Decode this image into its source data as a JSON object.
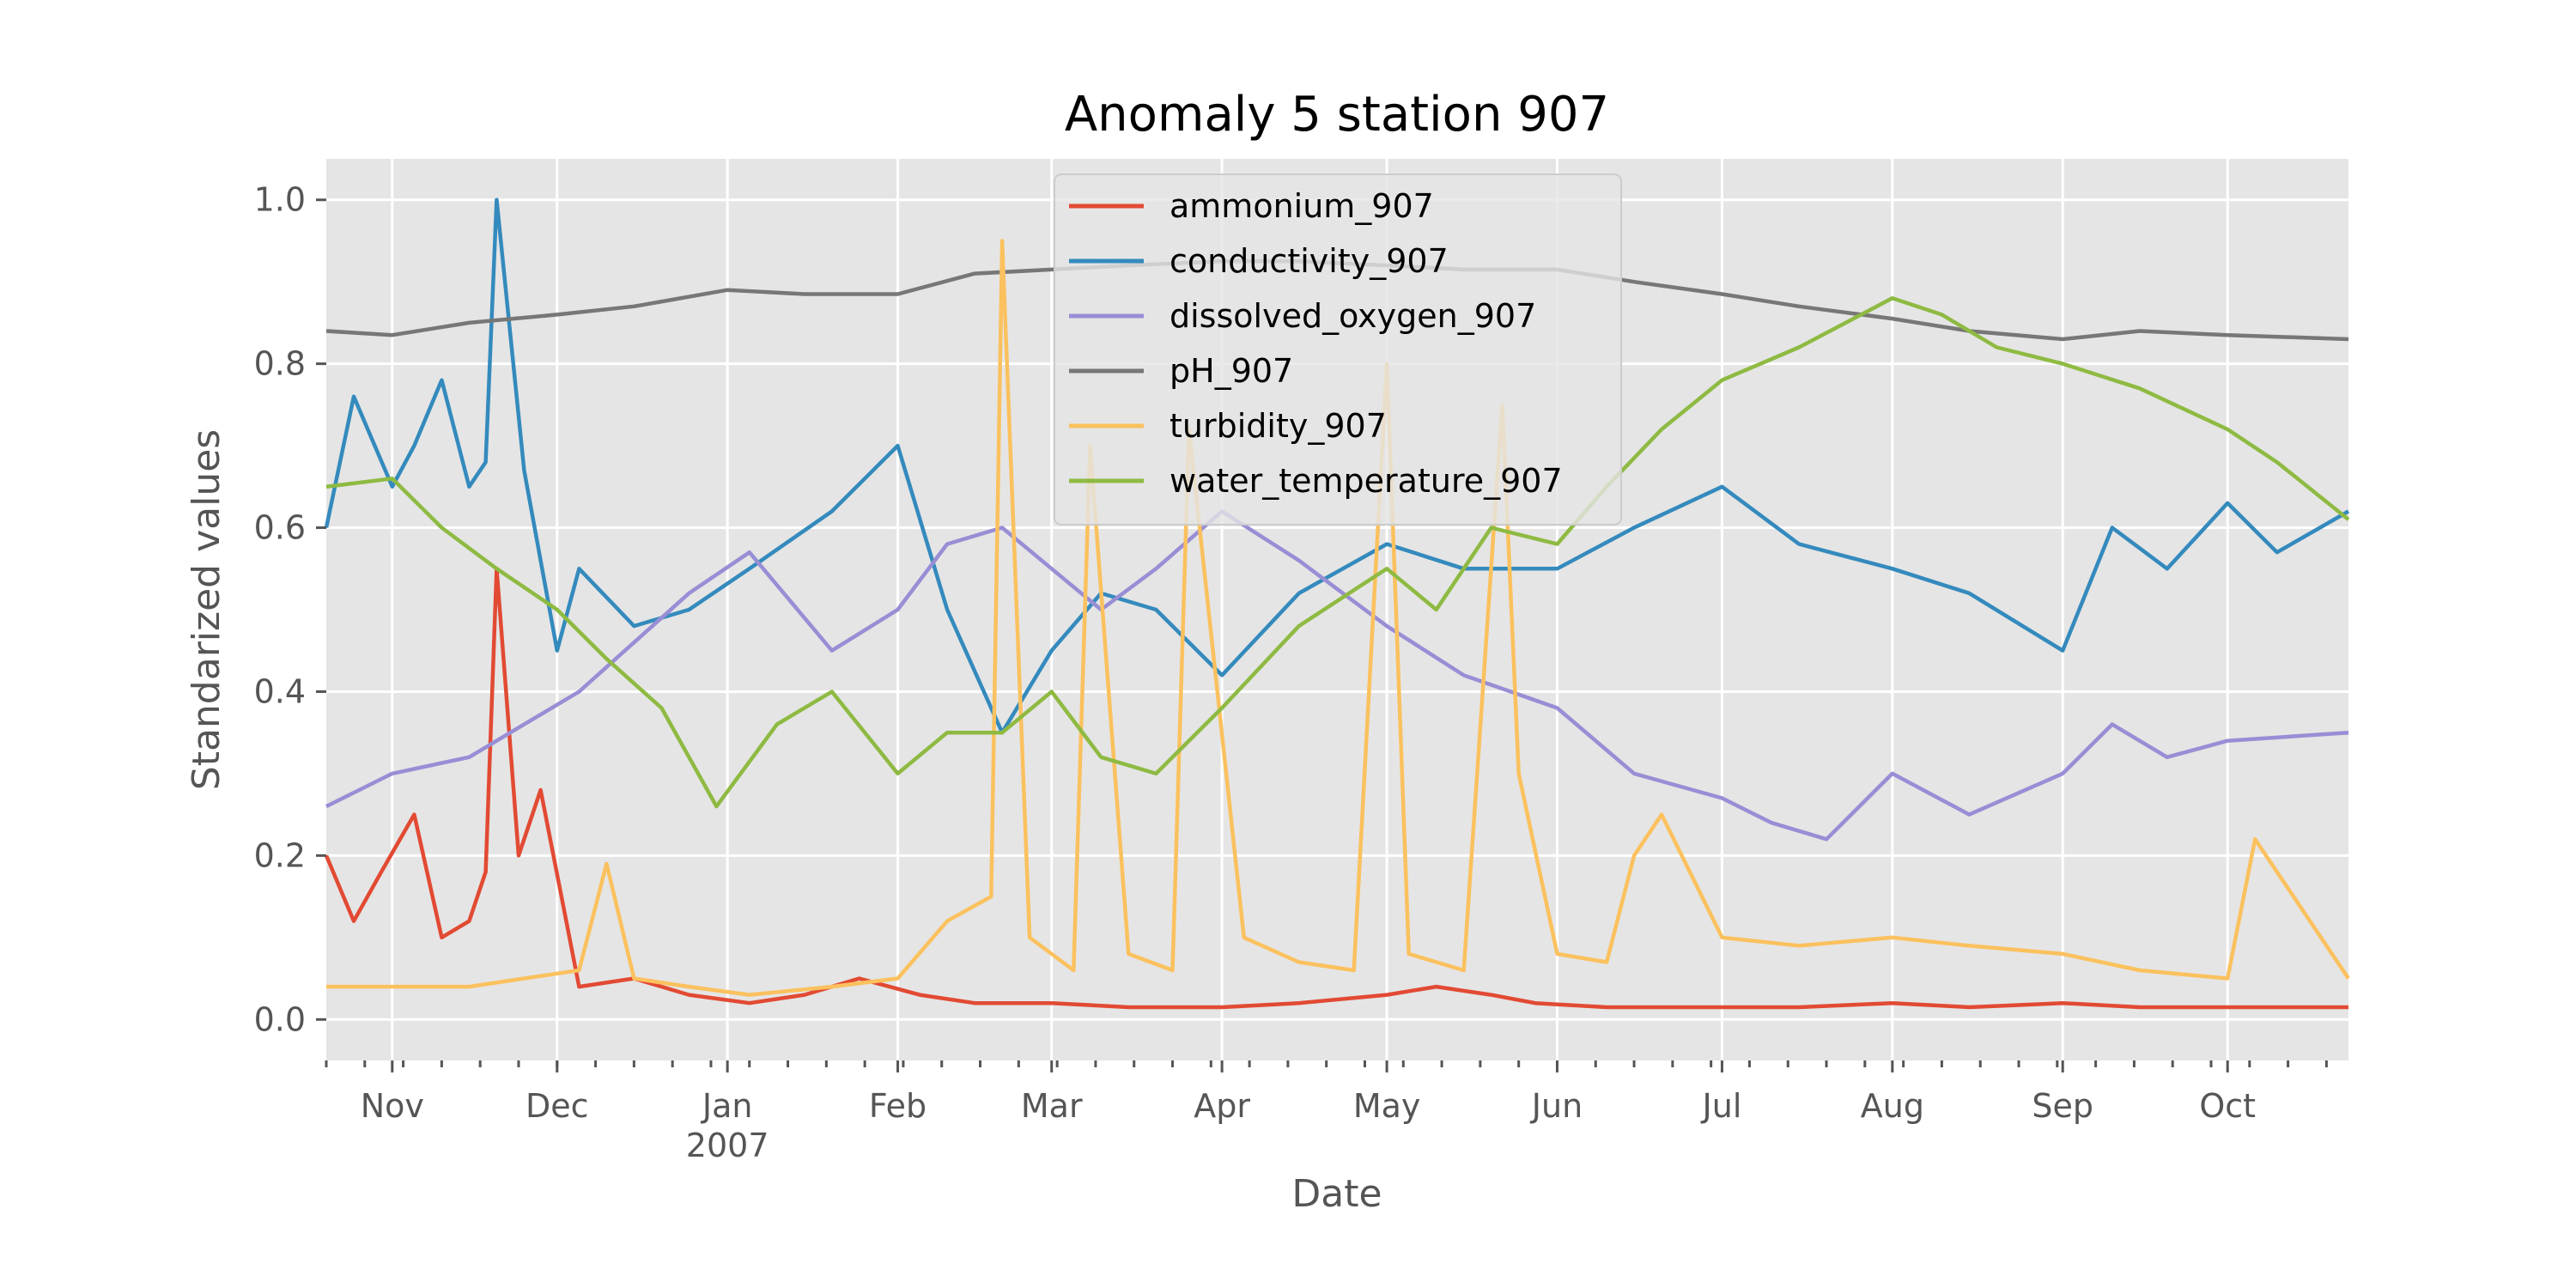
{
  "chart_data": {
    "type": "line",
    "title": "Anomaly 5 station 907",
    "xlabel": "Date",
    "ylabel": "Standarized values",
    "x_range": [
      "2006-10-20",
      "2007-10-23"
    ],
    "ylim": [
      -0.05,
      1.05
    ],
    "y_ticks": [
      0.0,
      0.2,
      0.4,
      0.6,
      0.8,
      1.0
    ],
    "y_tick_labels": [
      "0.0",
      "0.2",
      "0.4",
      "0.6",
      "0.8",
      "1.0"
    ],
    "x_major_ticks": [
      {
        "date": "2006-11-01",
        "label": "Nov"
      },
      {
        "date": "2006-12-01",
        "label": "Dec"
      },
      {
        "date": "2007-01-01",
        "label": "Jan",
        "sublabel": "2007"
      },
      {
        "date": "2007-02-01",
        "label": "Feb"
      },
      {
        "date": "2007-03-01",
        "label": "Mar"
      },
      {
        "date": "2007-04-01",
        "label": "Apr"
      },
      {
        "date": "2007-05-01",
        "label": "May"
      },
      {
        "date": "2007-06-01",
        "label": "Jun"
      },
      {
        "date": "2007-07-01",
        "label": "Jul"
      },
      {
        "date": "2007-08-01",
        "label": "Aug"
      },
      {
        "date": "2007-09-01",
        "label": "Sep"
      },
      {
        "date": "2007-10-01",
        "label": "Oct"
      }
    ],
    "grid": true,
    "legend_position": "top-center",
    "background": "#e5e5e5",
    "series": [
      {
        "name": "ammonium_907",
        "color": "#e24a33",
        "x": [
          "2006-10-20",
          "2006-10-25",
          "2006-10-30",
          "2006-11-05",
          "2006-11-10",
          "2006-11-15",
          "2006-11-18",
          "2006-11-20",
          "2006-11-24",
          "2006-11-28",
          "2006-12-05",
          "2006-12-15",
          "2006-12-25",
          "2007-01-05",
          "2007-01-15",
          "2007-01-25",
          "2007-02-05",
          "2007-02-15",
          "2007-03-01",
          "2007-03-15",
          "2007-04-01",
          "2007-04-15",
          "2007-05-01",
          "2007-05-10",
          "2007-05-20",
          "2007-05-28",
          "2007-06-10",
          "2007-06-20",
          "2007-07-01",
          "2007-07-15",
          "2007-08-01",
          "2007-08-15",
          "2007-09-01",
          "2007-09-15",
          "2007-10-01",
          "2007-10-23"
        ],
        "y": [
          0.2,
          0.12,
          0.18,
          0.25,
          0.1,
          0.12,
          0.18,
          0.55,
          0.2,
          0.28,
          0.04,
          0.05,
          0.03,
          0.02,
          0.03,
          0.05,
          0.03,
          0.02,
          0.02,
          0.015,
          0.015,
          0.02,
          0.03,
          0.04,
          0.03,
          0.02,
          0.015,
          0.015,
          0.015,
          0.015,
          0.02,
          0.015,
          0.02,
          0.015,
          0.015,
          0.015
        ]
      },
      {
        "name": "conductivity_907",
        "color": "#348abd",
        "x": [
          "2006-10-20",
          "2006-10-25",
          "2006-11-01",
          "2006-11-05",
          "2006-11-10",
          "2006-11-15",
          "2006-11-18",
          "2006-11-20",
          "2006-11-25",
          "2006-12-01",
          "2006-12-05",
          "2006-12-15",
          "2006-12-25",
          "2007-01-05",
          "2007-01-20",
          "2007-02-01",
          "2007-02-10",
          "2007-02-20",
          "2007-03-01",
          "2007-03-10",
          "2007-03-20",
          "2007-04-01",
          "2007-04-15",
          "2007-05-01",
          "2007-05-15",
          "2007-06-01",
          "2007-06-15",
          "2007-07-01",
          "2007-07-15",
          "2007-08-01",
          "2007-08-15",
          "2007-09-01",
          "2007-09-10",
          "2007-09-20",
          "2007-10-01",
          "2007-10-10",
          "2007-10-23"
        ],
        "y": [
          0.6,
          0.76,
          0.65,
          0.7,
          0.78,
          0.65,
          0.68,
          1.0,
          0.67,
          0.45,
          0.55,
          0.48,
          0.5,
          0.55,
          0.62,
          0.7,
          0.5,
          0.35,
          0.45,
          0.52,
          0.5,
          0.42,
          0.52,
          0.58,
          0.55,
          0.55,
          0.6,
          0.65,
          0.58,
          0.55,
          0.52,
          0.45,
          0.6,
          0.55,
          0.63,
          0.57,
          0.62
        ]
      },
      {
        "name": "dissolved_oxygen_907",
        "color": "#988ed5",
        "x": [
          "2006-10-20",
          "2006-11-01",
          "2006-11-15",
          "2006-11-25",
          "2006-12-05",
          "2006-12-15",
          "2006-12-25",
          "2007-01-05",
          "2007-01-20",
          "2007-02-01",
          "2007-02-10",
          "2007-02-20",
          "2007-03-01",
          "2007-03-10",
          "2007-03-20",
          "2007-04-01",
          "2007-04-15",
          "2007-05-01",
          "2007-05-15",
          "2007-06-01",
          "2007-06-15",
          "2007-07-01",
          "2007-07-10",
          "2007-07-20",
          "2007-08-01",
          "2007-08-15",
          "2007-09-01",
          "2007-09-10",
          "2007-09-20",
          "2007-10-01",
          "2007-10-23"
        ],
        "y": [
          0.26,
          0.3,
          0.32,
          0.36,
          0.4,
          0.46,
          0.52,
          0.57,
          0.45,
          0.5,
          0.58,
          0.6,
          0.55,
          0.5,
          0.55,
          0.62,
          0.56,
          0.48,
          0.42,
          0.38,
          0.3,
          0.27,
          0.24,
          0.22,
          0.3,
          0.25,
          0.3,
          0.36,
          0.32,
          0.34,
          0.35
        ]
      },
      {
        "name": "pH_907",
        "color": "#777777",
        "x": [
          "2006-10-20",
          "2006-11-01",
          "2006-11-15",
          "2006-12-01",
          "2006-12-15",
          "2007-01-01",
          "2007-01-15",
          "2007-02-01",
          "2007-02-15",
          "2007-03-01",
          "2007-03-15",
          "2007-04-01",
          "2007-04-15",
          "2007-05-01",
          "2007-05-15",
          "2007-06-01",
          "2007-06-15",
          "2007-07-01",
          "2007-07-15",
          "2007-08-01",
          "2007-08-15",
          "2007-09-01",
          "2007-09-15",
          "2007-10-01",
          "2007-10-23"
        ],
        "y": [
          0.84,
          0.835,
          0.85,
          0.86,
          0.87,
          0.89,
          0.885,
          0.885,
          0.91,
          0.915,
          0.92,
          0.925,
          0.925,
          0.92,
          0.915,
          0.915,
          0.9,
          0.885,
          0.87,
          0.855,
          0.84,
          0.83,
          0.84,
          0.835,
          0.83
        ]
      },
      {
        "name": "turbidity_907",
        "color": "#fbc15e",
        "x": [
          "2006-10-20",
          "2006-11-01",
          "2006-11-15",
          "2006-11-25",
          "2006-12-05",
          "2006-12-10",
          "2006-12-15",
          "2006-12-25",
          "2007-01-05",
          "2007-01-20",
          "2007-02-01",
          "2007-02-10",
          "2007-02-18",
          "2007-02-20",
          "2007-02-25",
          "2007-03-05",
          "2007-03-08",
          "2007-03-15",
          "2007-03-23",
          "2007-03-26",
          "2007-04-05",
          "2007-04-15",
          "2007-04-25",
          "2007-05-01",
          "2007-05-05",
          "2007-05-15",
          "2007-05-22",
          "2007-05-25",
          "2007-06-01",
          "2007-06-10",
          "2007-06-15",
          "2007-06-20",
          "2007-07-01",
          "2007-07-15",
          "2007-08-01",
          "2007-08-15",
          "2007-09-01",
          "2007-09-15",
          "2007-10-01",
          "2007-10-06",
          "2007-10-23"
        ],
        "y": [
          0.04,
          0.04,
          0.04,
          0.05,
          0.06,
          0.19,
          0.05,
          0.04,
          0.03,
          0.04,
          0.05,
          0.12,
          0.15,
          0.95,
          0.1,
          0.06,
          0.7,
          0.08,
          0.06,
          0.72,
          0.1,
          0.07,
          0.06,
          0.8,
          0.08,
          0.06,
          0.75,
          0.3,
          0.08,
          0.07,
          0.2,
          0.25,
          0.1,
          0.09,
          0.1,
          0.09,
          0.08,
          0.06,
          0.05,
          0.22,
          0.05
        ]
      },
      {
        "name": "water_temperature_907",
        "color": "#8eba42",
        "x": [
          "2006-10-20",
          "2006-11-01",
          "2006-11-10",
          "2006-11-20",
          "2006-12-01",
          "2006-12-10",
          "2006-12-20",
          "2006-12-30",
          "2007-01-10",
          "2007-01-20",
          "2007-02-01",
          "2007-02-10",
          "2007-02-20",
          "2007-03-01",
          "2007-03-10",
          "2007-03-20",
          "2007-04-01",
          "2007-04-15",
          "2007-05-01",
          "2007-05-10",
          "2007-05-20",
          "2007-06-01",
          "2007-06-10",
          "2007-06-20",
          "2007-07-01",
          "2007-07-15",
          "2007-08-01",
          "2007-08-10",
          "2007-08-20",
          "2007-09-01",
          "2007-09-15",
          "2007-10-01",
          "2007-10-10",
          "2007-10-23"
        ],
        "y": [
          0.65,
          0.66,
          0.6,
          0.55,
          0.5,
          0.44,
          0.38,
          0.26,
          0.36,
          0.4,
          0.3,
          0.35,
          0.35,
          0.4,
          0.32,
          0.3,
          0.38,
          0.48,
          0.55,
          0.5,
          0.6,
          0.58,
          0.65,
          0.72,
          0.78,
          0.82,
          0.88,
          0.86,
          0.82,
          0.8,
          0.77,
          0.72,
          0.68,
          0.61
        ]
      }
    ]
  }
}
